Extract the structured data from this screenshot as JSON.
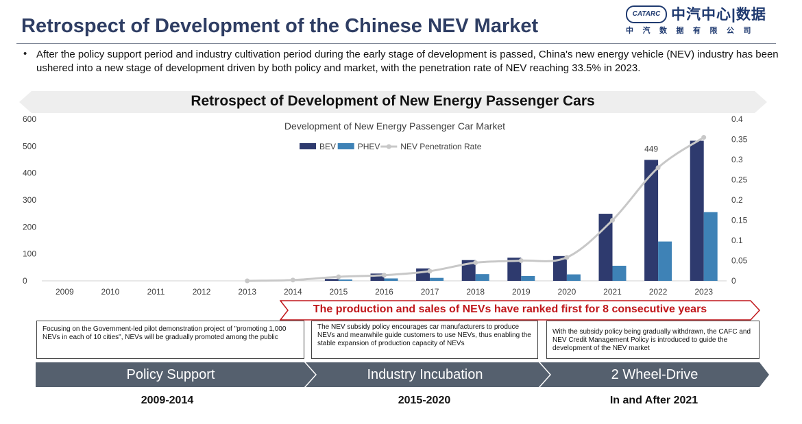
{
  "header": {
    "title": "Retrospect of Development of the Chinese NEV Market",
    "logo_badge": "CATARC",
    "logo_cn": "中汽中心|数据",
    "logo_sub": "中汽数据有限公司"
  },
  "intro": {
    "bullet": "•",
    "text": "After the policy support period and industry cultivation period during the early stage of development is passed, China's new energy vehicle (NEV) industry has been ushered into a new stage of development driven by both policy and market, with the penetration rate of NEV reaching 33.5% in 2023."
  },
  "banner": {
    "title": "Retrospect of Development of New Energy Passenger Cars"
  },
  "chart_data": {
    "type": "bar",
    "title": "Development of New Energy Passenger Car Market",
    "categories": [
      "2009",
      "2010",
      "2011",
      "2012",
      "2013",
      "2014",
      "2015",
      "2016",
      "2017",
      "2018",
      "2019",
      "2020",
      "2021",
      "2022",
      "2023"
    ],
    "series": [
      {
        "name": "BEV",
        "type": "bar",
        "axis": "left",
        "color": "#2e3a6e",
        "values": [
          0,
          0,
          0,
          0,
          0,
          0,
          7,
          27,
          46,
          77,
          86,
          92,
          249,
          449,
          520
        ]
      },
      {
        "name": "PHEV",
        "type": "bar",
        "axis": "left",
        "color": "#3e82b6",
        "values": [
          0,
          0,
          0,
          0,
          0,
          0,
          5,
          9,
          11,
          25,
          18,
          24,
          56,
          146,
          255
        ]
      },
      {
        "name": "NEV Penetration Rate",
        "type": "line",
        "axis": "right",
        "color": "#c8c8c8",
        "values": [
          null,
          null,
          null,
          null,
          0.0,
          0.002,
          0.01,
          0.014,
          0.024,
          0.045,
          0.05,
          0.058,
          0.15,
          0.28,
          0.355
        ]
      }
    ],
    "ylim": [
      0,
      600
    ],
    "yticks": [
      0,
      100,
      200,
      300,
      400,
      500,
      600
    ],
    "y2lim": [
      0,
      0.4
    ],
    "y2ticks": [
      "0",
      "0.05",
      "0.1",
      "0.15",
      "0.2",
      "0.25",
      "0.3",
      "0.35",
      "0.4"
    ],
    "data_labels": [
      {
        "category": "2022",
        "series": "BEV",
        "text": "449"
      }
    ],
    "legend_position": "top-center",
    "grid": false
  },
  "ranking_banner": {
    "text": "The production and sales of NEVs have ranked first for 8 consecutive years"
  },
  "stages": [
    {
      "label": "Policy Support",
      "period": "2009-2014",
      "description": "Focusing on the Government-led pilot demonstration project of \"promoting 1,000 NEVs in each of 10 cities\", NEVs will be gradually promoted among the public"
    },
    {
      "label": "Industry Incubation",
      "period": "2015-2020",
      "description": "The NEV subsidy policy encourages car manufacturers to produce NEVs and meanwhile guide customers to use NEVs, thus enabling the stable expansion of production capacity of NEVs"
    },
    {
      "label": "2 Wheel-Drive",
      "period": "In and After 2021",
      "description": "With the subsidy policy being gradually withdrawn, the CAFC and NEV Credit Management Policy is introduced to guide the development of the NEV market"
    }
  ],
  "colors": {
    "title": "#2e3d63",
    "stage_bar": "#55606e",
    "ranking_red": "#c0171b",
    "banner_grey": "#eeeeee"
  }
}
